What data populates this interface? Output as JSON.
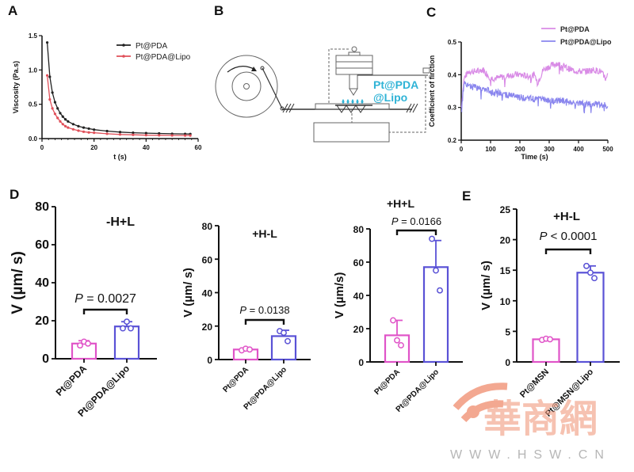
{
  "panels": {
    "A": "A",
    "B": "B",
    "C": "C",
    "D": "D",
    "E": "E"
  },
  "diagram_B": {
    "label_line1": "Pt@PDA",
    "label_line2": "@Lipo",
    "label_color": "#2fb3d6"
  },
  "colors": {
    "pt_pda_a": "#222222",
    "pt_pda_lipo_a": "#e0505a",
    "pt_pda_c": "#d98be6",
    "pt_pda_lipo_c": "#8a86ee",
    "bar_pink": "#e054c8",
    "bar_blue": "#5a52d6"
  },
  "watermark": {
    "url_text": "WWW.HSW.CN",
    "color": "#f19a7e"
  },
  "chart_data": [
    {
      "id": "A",
      "type": "line",
      "title": "",
      "xlabel": "t (s)",
      "ylabel": "Viscosity (Pa.s)",
      "xlim": [
        0,
        60
      ],
      "ylim": [
        0,
        1.5
      ],
      "xticks": [
        "0",
        "20",
        "40",
        "60"
      ],
      "yticks": [
        "0.0",
        "0.5",
        "1.0",
        "1.5"
      ],
      "legend": "top-right",
      "series": [
        {
          "name": "Pt@PDA",
          "x": [
            2,
            3,
            4,
            5,
            6,
            7,
            8,
            9,
            10,
            12,
            14,
            16,
            18,
            20,
            25,
            30,
            35,
            40,
            45,
            50,
            55,
            57
          ],
          "y": [
            1.4,
            0.9,
            0.67,
            0.53,
            0.44,
            0.37,
            0.32,
            0.28,
            0.25,
            0.21,
            0.18,
            0.16,
            0.145,
            0.13,
            0.11,
            0.095,
            0.085,
            0.08,
            0.075,
            0.07,
            0.068,
            0.067
          ]
        },
        {
          "name": "Pt@PDA@Lipo",
          "x": [
            2,
            3,
            4,
            5,
            6,
            7,
            8,
            9,
            10,
            12,
            14,
            16,
            18,
            20,
            25,
            30,
            35,
            40,
            45,
            50,
            55,
            57
          ],
          "y": [
            0.92,
            0.57,
            0.44,
            0.36,
            0.3,
            0.25,
            0.21,
            0.18,
            0.16,
            0.135,
            0.115,
            0.1,
            0.09,
            0.085,
            0.07,
            0.06,
            0.055,
            0.05,
            0.048,
            0.046,
            0.045,
            0.045
          ]
        }
      ]
    },
    {
      "id": "C",
      "type": "line",
      "title": "",
      "xlabel": "Time (s)",
      "ylabel": "Coefficient of firction",
      "xlim": [
        0,
        500
      ],
      "ylim": [
        0.2,
        0.5
      ],
      "xticks": [
        "0",
        "100",
        "200",
        "300",
        "400",
        "500"
      ],
      "yticks": [
        "0.2",
        "0.3",
        "0.4",
        "0.5"
      ],
      "legend": "top-right",
      "series": [
        {
          "name": "Pt@PDA",
          "x": [
            0,
            10,
            25,
            50,
            75,
            100,
            125,
            150,
            175,
            200,
            225,
            250,
            260,
            280,
            300,
            325,
            350,
            375,
            400,
            425,
            450,
            475,
            495,
            500
          ],
          "y": [
            0.3,
            0.39,
            0.41,
            0.41,
            0.415,
            0.39,
            0.39,
            0.395,
            0.4,
            0.4,
            0.395,
            0.4,
            0.375,
            0.415,
            0.425,
            0.435,
            0.425,
            0.415,
            0.41,
            0.41,
            0.415,
            0.41,
            0.385,
            0.4
          ]
        },
        {
          "name": "Pt@PDA@Lipo",
          "x": [
            0,
            10,
            25,
            50,
            75,
            100,
            125,
            150,
            175,
            200,
            225,
            250,
            275,
            300,
            325,
            350,
            375,
            400,
            425,
            450,
            475,
            500
          ],
          "y": [
            0.3,
            0.375,
            0.365,
            0.36,
            0.355,
            0.35,
            0.345,
            0.34,
            0.335,
            0.33,
            0.33,
            0.325,
            0.325,
            0.32,
            0.32,
            0.32,
            0.315,
            0.315,
            0.31,
            0.31,
            0.31,
            0.305
          ]
        }
      ]
    },
    {
      "id": "D1",
      "type": "bar",
      "title": "-H+L",
      "ylabel": "V (µm/ s)",
      "ylim": [
        0,
        80
      ],
      "yticks": [
        "0",
        "20",
        "40",
        "60",
        "80"
      ],
      "categories": [
        "Pt@PDA",
        "Pt@PDA@Lipo"
      ],
      "values": [
        8,
        17
      ],
      "errors": [
        1.5,
        2.5
      ],
      "points": [
        [
          7,
          9,
          8
        ],
        [
          16,
          19.5,
          16
        ]
      ],
      "annotation": {
        "label": "P",
        "text": " = 0.0027"
      }
    },
    {
      "id": "D2",
      "type": "bar",
      "title": "+H-L",
      "ylabel": "V (µm/ s)",
      "ylim": [
        0,
        80
      ],
      "yticks": [
        "0",
        "20",
        "40",
        "60",
        "80"
      ],
      "categories": [
        "Pt@PDA",
        "Pt@PDA@Lipo"
      ],
      "values": [
        6,
        14
      ],
      "errors": [
        0.8,
        3.5
      ],
      "points": [
        [
          5.5,
          6.5,
          6
        ],
        [
          17,
          16,
          11
        ]
      ],
      "annotation": {
        "label": "P",
        "text": " = 0.0138"
      }
    },
    {
      "id": "D3",
      "type": "bar",
      "title": "+H+L",
      "ylabel": "V (µm/s)",
      "ylim": [
        0,
        80
      ],
      "yticks": [
        "0",
        "20",
        "40",
        "60",
        "80"
      ],
      "categories": [
        "Pt@PDA",
        "Pt@PDA@Lipo"
      ],
      "values": [
        16,
        57
      ],
      "errors": [
        9,
        16
      ],
      "points": [
        [
          25,
          13,
          10
        ],
        [
          74,
          55,
          43
        ]
      ],
      "annotation": {
        "label": "P",
        "text": " = 0.0166"
      }
    },
    {
      "id": "E",
      "type": "bar",
      "title": "+H-L",
      "ylabel": "V (µm/ s)",
      "ylim": [
        0,
        25
      ],
      "yticks": [
        "0",
        "5",
        "10",
        "15",
        "20",
        "25"
      ],
      "categories": [
        "Pt@MSN",
        "Pt@MSN@Lipo"
      ],
      "values": [
        3.7,
        14.6
      ],
      "errors": [
        0.2,
        1.1
      ],
      "points": [
        [
          3.6,
          3.8,
          3.7
        ],
        [
          15.7,
          14.6,
          13.7
        ]
      ],
      "annotation": {
        "label": "P",
        "text": " < 0.0001"
      }
    }
  ]
}
